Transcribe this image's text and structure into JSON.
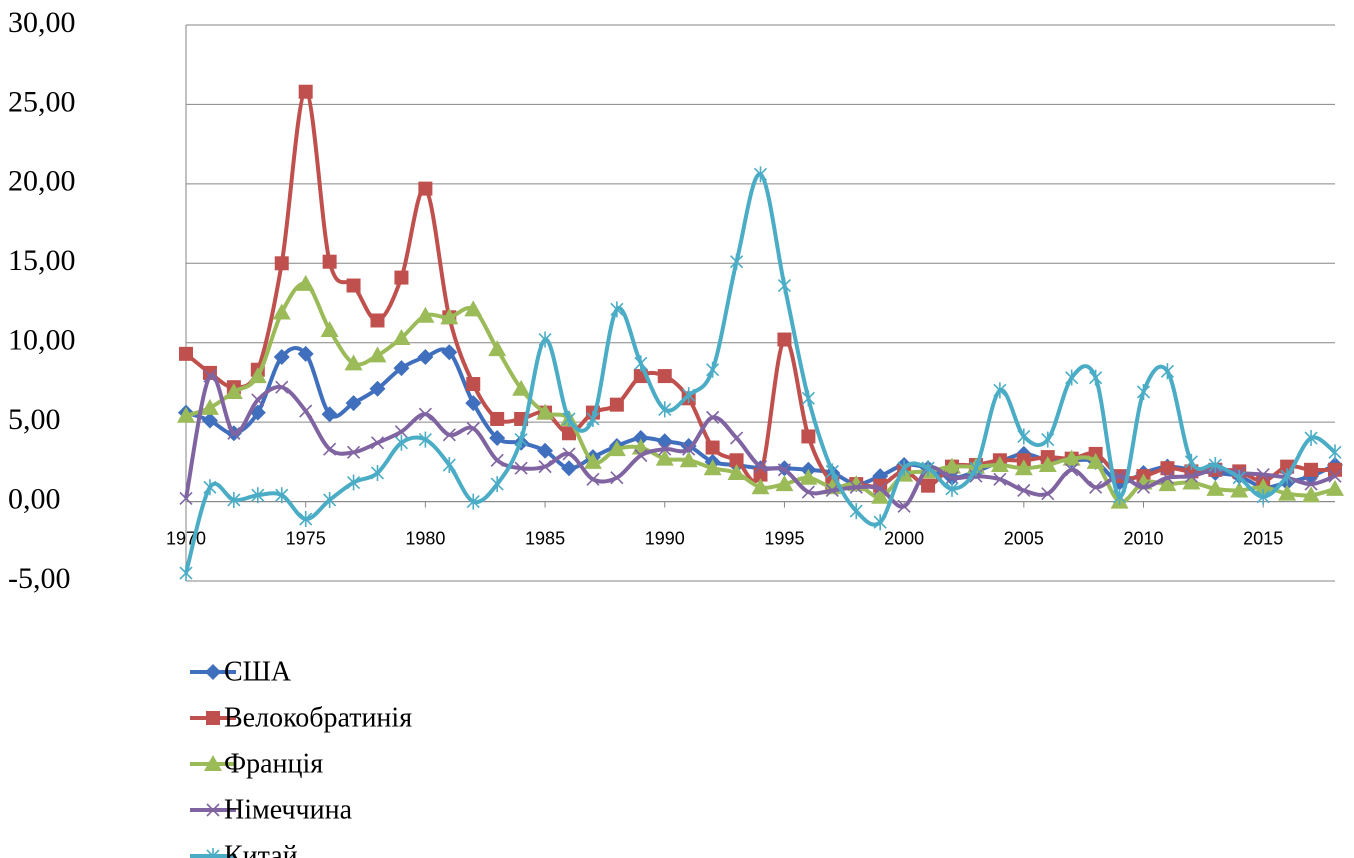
{
  "chart_data": {
    "type": "line",
    "x": [
      1970,
      1971,
      1972,
      1973,
      1974,
      1975,
      1976,
      1977,
      1978,
      1979,
      1980,
      1981,
      1982,
      1983,
      1984,
      1985,
      1986,
      1987,
      1988,
      1989,
      1990,
      1991,
      1992,
      1993,
      1994,
      1995,
      1996,
      1997,
      1998,
      1999,
      2000,
      2001,
      2002,
      2003,
      2004,
      2005,
      2006,
      2007,
      2008,
      2009,
      2010,
      2011,
      2012,
      2013,
      2014,
      2015,
      2016,
      2017,
      2018
    ],
    "xlim": [
      1970,
      2018
    ],
    "xticks": [
      1970,
      1975,
      1980,
      1985,
      1990,
      1995,
      2000,
      2005,
      2010,
      2015
    ],
    "ylim": [
      -5,
      30
    ],
    "yticks": [
      {
        "value": -5,
        "label": "-5,00"
      },
      {
        "value": 0,
        "label": "0,00"
      },
      {
        "value": 5,
        "label": "5,00"
      },
      {
        "value": 10,
        "label": "10,00"
      },
      {
        "value": 15,
        "label": "15,00"
      },
      {
        "value": 20,
        "label": "20,00"
      },
      {
        "value": 25,
        "label": "25,00"
      },
      {
        "value": 30,
        "label": "30,00"
      }
    ],
    "grid": true,
    "legend": "bottom-left",
    "series": [
      {
        "name": "США",
        "color": "#3f6fbd",
        "marker": "diamond",
        "values": [
          5.6,
          5.1,
          4.3,
          5.6,
          9.1,
          9.3,
          5.5,
          6.2,
          7.1,
          8.4,
          9.1,
          9.4,
          6.2,
          4.0,
          3.7,
          3.2,
          2.1,
          2.8,
          3.5,
          4.0,
          3.8,
          3.5,
          2.5,
          2.3,
          2.1,
          2.1,
          2.0,
          1.8,
          1.1,
          1.6,
          2.3,
          2.1,
          1.5,
          1.9,
          2.5,
          3.0,
          2.6,
          2.6,
          2.5,
          1.2,
          1.8,
          2.2,
          2.0,
          1.8,
          1.6,
          0.9,
          1.2,
          1.6,
          2.3
        ]
      },
      {
        "name": "Велокобратинія",
        "color": "#c0504d",
        "marker": "square",
        "values": [
          9.3,
          8.1,
          7.2,
          8.3,
          15.0,
          25.8,
          15.1,
          13.6,
          11.4,
          14.1,
          19.7,
          11.6,
          7.4,
          5.2,
          5.2,
          5.6,
          4.3,
          5.6,
          6.1,
          7.9,
          7.9,
          6.5,
          3.4,
          2.6,
          1.7,
          10.2,
          4.1,
          1.2,
          1.1,
          1.0,
          1.9,
          1.0,
          2.2,
          2.3,
          2.6,
          2.6,
          2.8,
          2.7,
          3.0,
          1.6,
          1.6,
          2.1,
          1.9,
          2.0,
          1.9,
          1.3,
          2.2,
          2.0,
          2.0
        ]
      },
      {
        "name": "Франція",
        "color": "#9bbb59",
        "marker": "triangle",
        "values": [
          5.4,
          5.9,
          6.9,
          7.9,
          11.9,
          13.7,
          10.8,
          8.7,
          9.2,
          10.3,
          11.7,
          11.6,
          12.1,
          9.6,
          7.1,
          5.6,
          5.2,
          2.5,
          3.3,
          3.4,
          2.7,
          2.6,
          2.1,
          1.8,
          0.9,
          1.1,
          1.5,
          0.9,
          1.1,
          0.3,
          1.7,
          1.9,
          2.2,
          2.2,
          2.3,
          2.1,
          2.3,
          2.7,
          2.5,
          0.0,
          1.2,
          1.1,
          1.2,
          0.8,
          0.7,
          0.9,
          0.5,
          0.4,
          0.8
        ]
      },
      {
        "name": "Німеччина",
        "color": "#8064a2",
        "marker": "x",
        "values": [
          0.2,
          7.9,
          4.3,
          6.4,
          7.2,
          5.7,
          3.3,
          3.1,
          3.7,
          4.4,
          5.5,
          4.2,
          4.6,
          2.6,
          2.1,
          2.2,
          3.0,
          1.4,
          1.5,
          2.9,
          3.3,
          3.3,
          5.3,
          4.0,
          2.2,
          2.0,
          0.6,
          0.7,
          0.9,
          0.8,
          -0.3,
          2.1,
          1.5,
          1.6,
          1.4,
          0.7,
          0.5,
          2.0,
          0.9,
          1.6,
          0.9,
          1.5,
          1.6,
          2.0,
          1.8,
          1.7,
          1.5,
          1.1,
          1.6
        ]
      },
      {
        "name": "Китай",
        "color": "#4bacc6",
        "marker": "star",
        "values": [
          -4.5,
          0.9,
          0.1,
          0.4,
          0.4,
          -1.1,
          0.1,
          1.2,
          1.8,
          3.7,
          3.9,
          2.3,
          0.0,
          1.1,
          3.9,
          10.2,
          5.2,
          5.2,
          12.1,
          8.7,
          5.8,
          6.7,
          8.3,
          15.1,
          20.6,
          13.6,
          6.5,
          1.9,
          -0.6,
          -1.3,
          2.1,
          2.1,
          0.8,
          2.1,
          7.0,
          4.1,
          3.9,
          7.8,
          7.8,
          0.3,
          6.9,
          8.2,
          2.5,
          2.3,
          1.5,
          0.3,
          1.6,
          4.0,
          3.1
        ]
      }
    ]
  }
}
